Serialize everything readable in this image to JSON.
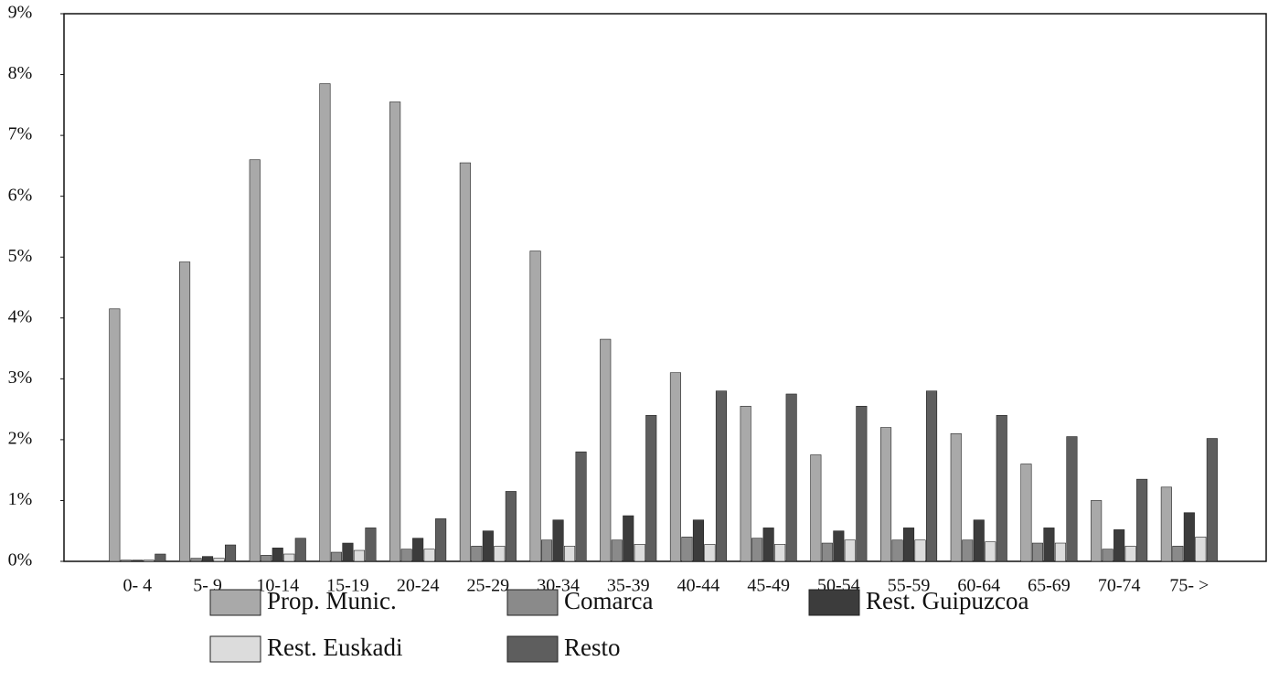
{
  "chart_data": {
    "type": "bar",
    "categories": [
      "0- 4",
      "5- 9",
      "10-14",
      "15-19",
      "20-24",
      "25-29",
      "30-34",
      "35-39",
      "40-44",
      "45-49",
      "50-54",
      "55-59",
      "60-64",
      "65-69",
      "70-74",
      "75- >"
    ],
    "series": [
      {
        "name": "Prop. Munic.",
        "color": "#a9a9a9",
        "values": [
          4.15,
          4.92,
          6.6,
          7.85,
          7.55,
          6.55,
          5.1,
          3.65,
          3.1,
          2.55,
          1.75,
          2.2,
          2.1,
          1.6,
          1.0,
          1.22
        ]
      },
      {
        "name": "Comarca",
        "color": "#8a8a8a",
        "values": [
          0.02,
          0.05,
          0.1,
          0.15,
          0.2,
          0.25,
          0.35,
          0.35,
          0.4,
          0.38,
          0.3,
          0.35,
          0.35,
          0.3,
          0.2,
          0.25
        ]
      },
      {
        "name": "Rest. Guipuzcoa",
        "color": "#3c3c3c",
        "values": [
          0.02,
          0.08,
          0.22,
          0.3,
          0.38,
          0.5,
          0.68,
          0.75,
          0.68,
          0.55,
          0.5,
          0.55,
          0.68,
          0.55,
          0.52,
          0.8
        ]
      },
      {
        "name": "Rest. Euskadi",
        "color": "#dcdcdc",
        "values": [
          0.02,
          0.05,
          0.12,
          0.18,
          0.2,
          0.25,
          0.25,
          0.28,
          0.28,
          0.28,
          0.35,
          0.35,
          0.32,
          0.3,
          0.25,
          0.4
        ]
      },
      {
        "name": "Resto",
        "color": "#5e5e5e",
        "values": [
          0.12,
          0.27,
          0.38,
          0.55,
          0.7,
          1.15,
          1.8,
          2.4,
          2.8,
          2.75,
          2.55,
          2.8,
          2.4,
          2.05,
          1.35,
          2.02
        ]
      }
    ],
    "ylim": [
      0,
      9
    ],
    "yticks": [
      {
        "value": 0,
        "label": "0%"
      },
      {
        "value": 1,
        "label": "1%"
      },
      {
        "value": 2,
        "label": "2%"
      },
      {
        "value": 3,
        "label": "3%"
      },
      {
        "value": 4,
        "label": "4%"
      },
      {
        "value": 5,
        "label": "5%"
      },
      {
        "value": 6,
        "label": "6%"
      },
      {
        "value": 7,
        "label": "7%"
      },
      {
        "value": 8,
        "label": "8%"
      },
      {
        "value": 9,
        "label": "9%"
      }
    ]
  }
}
